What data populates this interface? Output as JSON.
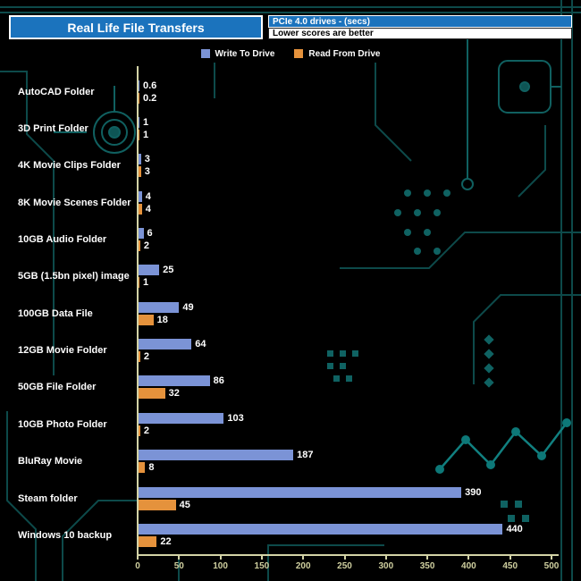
{
  "header": {
    "title": "Real Life File Transfers",
    "subtitle_primary": "PCIe 4.0 drives - (secs)",
    "subtitle_secondary": "Lower scores are better"
  },
  "legend": {
    "write_label": "Write To  Drive",
    "read_label": "Read From  Drive"
  },
  "colors": {
    "write": "#7b93d6",
    "read": "#e5923c",
    "title_bg": "#1b73bd",
    "axis": "#d3d3a6",
    "tick_text": "#cfcf9f",
    "background": "#000000",
    "circuit": "#0e5252"
  },
  "chart_data": {
    "type": "bar",
    "orientation": "horizontal",
    "title": "Real Life File Transfers",
    "subtitle": "PCIe 4.0 drives - (secs)",
    "note": "Lower scores are better",
    "xlim": [
      0,
      500
    ],
    "xticks": [
      0,
      50,
      100,
      150,
      200,
      250,
      300,
      350,
      400,
      450,
      500
    ],
    "grid": false,
    "legend_position": "top",
    "categories": [
      "AutoCAD Folder",
      "3D Print Folder",
      "4K Movie Clips Folder",
      "8K Movie Scenes Folder",
      "10GB Audio Folder",
      "5GB (1.5bn pixel) image",
      "100GB Data File",
      "12GB Movie Folder",
      "50GB File Folder",
      "10GB Photo Folder",
      "BluRay Movie",
      "Steam folder",
      "Windows 10 backup"
    ],
    "series": [
      {
        "name": "Write To Drive",
        "color": "#7b93d6",
        "values": [
          0.6,
          1,
          3,
          4,
          6,
          25,
          49,
          64,
          86,
          103,
          187,
          390,
          440
        ],
        "labels": [
          "0.6",
          "1",
          "3",
          "4",
          "6",
          "25",
          "49",
          "64",
          "86",
          "103",
          "187",
          "390",
          "440"
        ]
      },
      {
        "name": "Read From Drive",
        "color": "#e5923c",
        "values": [
          0.2,
          1,
          3,
          4,
          2,
          1,
          18,
          2,
          32,
          2,
          8,
          45,
          22
        ],
        "labels": [
          "0.2",
          "1",
          "3",
          "4",
          "2",
          "1",
          "18",
          "2",
          "32",
          "2",
          "8",
          "45",
          "22"
        ]
      }
    ]
  }
}
